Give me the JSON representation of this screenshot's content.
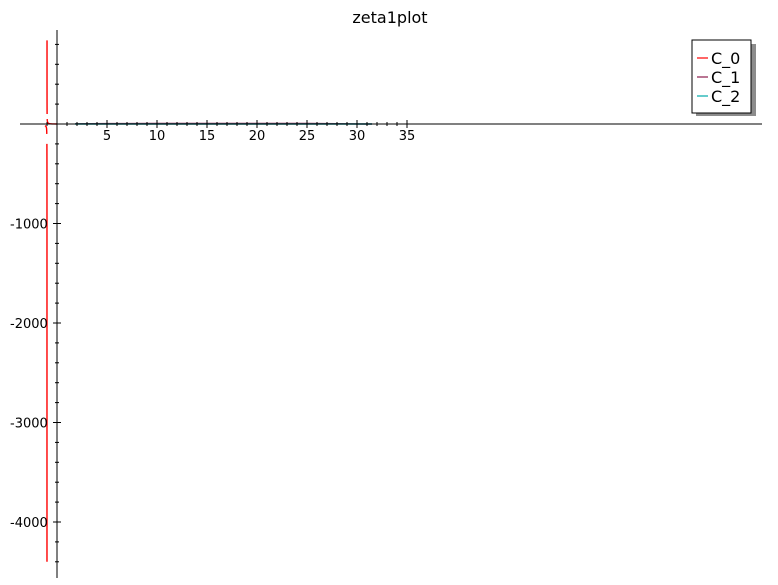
{
  "chart_data": {
    "type": "line",
    "title": "zeta1plot",
    "xlabel": "",
    "ylabel": "",
    "xlim": [
      -1.25,
      35
    ],
    "ylim": [
      -4500,
      950
    ],
    "x_ticks": [
      5,
      10,
      15,
      20,
      25,
      30,
      35
    ],
    "x_tick_labels": [
      "5",
      "10",
      "15",
      "20",
      "25",
      "30",
      "35"
    ],
    "y_ticks": [
      -1000,
      -2000,
      -3000,
      -4000
    ],
    "y_tick_labels": [
      "-1000",
      "-2000",
      "-3000",
      "-4000"
    ],
    "grid": false,
    "legend": {
      "placement": "top-right",
      "shadow": true
    },
    "series": [
      {
        "name": "C_0",
        "color": "#ff0000",
        "segments": [
          {
            "x": [
              -1.2,
              -1.15,
              -1.1,
              -1.08,
              -1.06,
              -1.05,
              -1.04,
              -1.035,
              -1.03,
              -1.025,
              -1.022,
              -1.02
            ],
            "y": [
              -17,
              -20,
              -25,
              -29,
              -36,
              -40,
              -50,
              -57,
              -67,
              -80,
              -91,
              -100
            ]
          },
          {
            "x": [
              -1.01,
              -1.008,
              -1.006,
              -1.005,
              -1.004,
              -1.003,
              -1.0025,
              -1.0022
            ],
            "y": [
              -200,
              -250,
              -333,
              -400,
              -500,
              -667,
              -1000,
              -4400
            ]
          },
          {
            "x": [
              -0.9978,
              -0.9975,
              -0.997,
              -0.996,
              -0.995,
              -0.994,
              -0.992,
              -0.99
            ],
            "y": [
              840,
              400,
              333,
              250,
              200,
              167,
              125,
              100
            ]
          },
          {
            "x": [
              -0.98,
              -0.97,
              -0.95,
              -0.92,
              -0.9,
              -0.85,
              -0.8,
              -0.7,
              -0.6,
              -0.5,
              -0.3,
              0
            ],
            "y": [
              50,
              33,
              20,
              13,
              10,
              7,
              5,
              3,
              2,
              1,
              0.5,
              0
            ]
          }
        ]
      },
      {
        "name": "C_1",
        "color": "#8b1a4b",
        "segments": [
          {
            "x": [
              1.8,
              5,
              10,
              15,
              20,
              25,
              28,
              30,
              31.5
            ],
            "y": [
              2,
              4,
              6,
              6,
              6,
              5,
              3,
              1,
              0
            ]
          }
        ]
      },
      {
        "name": "C_2",
        "color": "#00aaaa",
        "segments": [
          {
            "x": [
              1.8,
              10,
              20,
              30,
              31.5
            ],
            "y": [
              0,
              0,
              0,
              0,
              0
            ]
          }
        ]
      }
    ]
  }
}
